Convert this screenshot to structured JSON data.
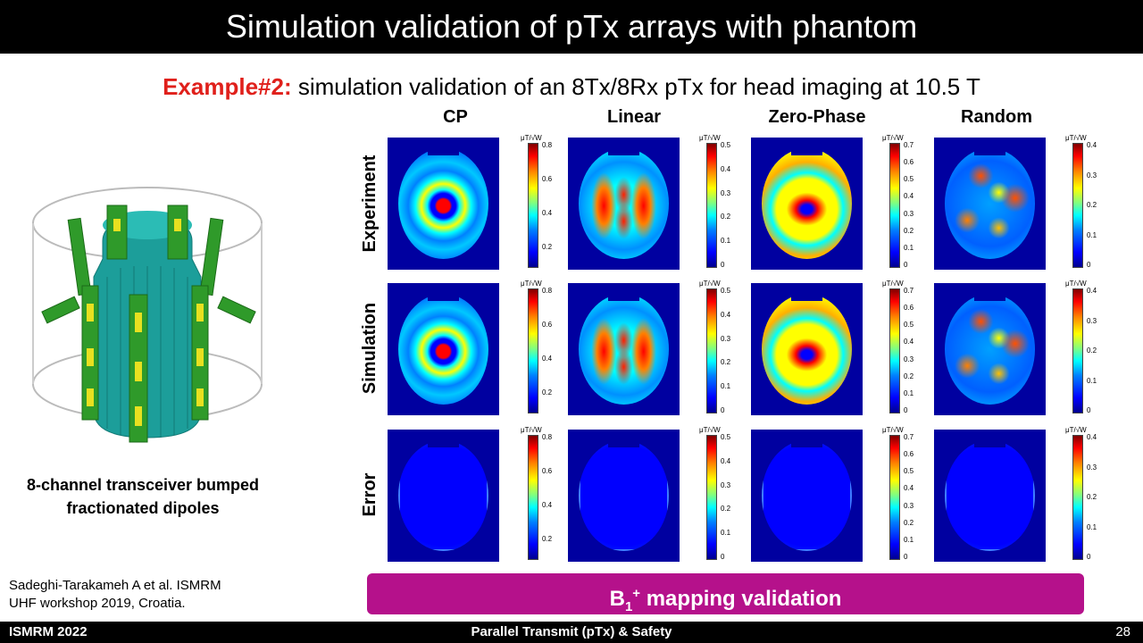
{
  "slide": {
    "title": "Simulation validation of pTx arrays with phantom",
    "subtitle_highlight": "Example#2:",
    "subtitle_rest": " simulation validation of an 8Tx/8Rx pTx for head imaging at 10.5 T"
  },
  "figure": {
    "columns": [
      "CP",
      "Linear",
      "Zero-Phase",
      "Random"
    ],
    "rows": [
      "Experiment",
      "Simulation",
      "Error"
    ],
    "colorbar_unit": "μT/√W",
    "colorbar_ticks": [
      [
        "0.8",
        "0.6",
        "0.4",
        "0.2"
      ],
      [
        "0.5",
        "0.4",
        "0.3",
        "0.2",
        "0.1",
        "0"
      ],
      [
        "0.7",
        "0.6",
        "0.5",
        "0.4",
        "0.3",
        "0.2",
        "0.1",
        "0"
      ],
      [
        "0.4",
        "0.3",
        "0.2",
        "0.1",
        "0"
      ]
    ],
    "colors": {
      "background": "#0000a0",
      "low": "#0000ff",
      "mid": "#00ffff",
      "high": "#ff0000"
    }
  },
  "coil": {
    "caption_line1": "8-channel transceiver bumped",
    "caption_line2": "fractionated dipoles"
  },
  "reference": {
    "line1": "Sadeghi-Tarakameh A et al. ISMRM",
    "line2": "UHF workshop 2019, Croatia."
  },
  "banner": {
    "b": "B",
    "sub": "1",
    "sup": "+",
    "rest": " mapping validation"
  },
  "footer": {
    "left": "ISMRM 2022",
    "center": "Parallel Transmit (pTx) & Safety",
    "page": "28"
  }
}
